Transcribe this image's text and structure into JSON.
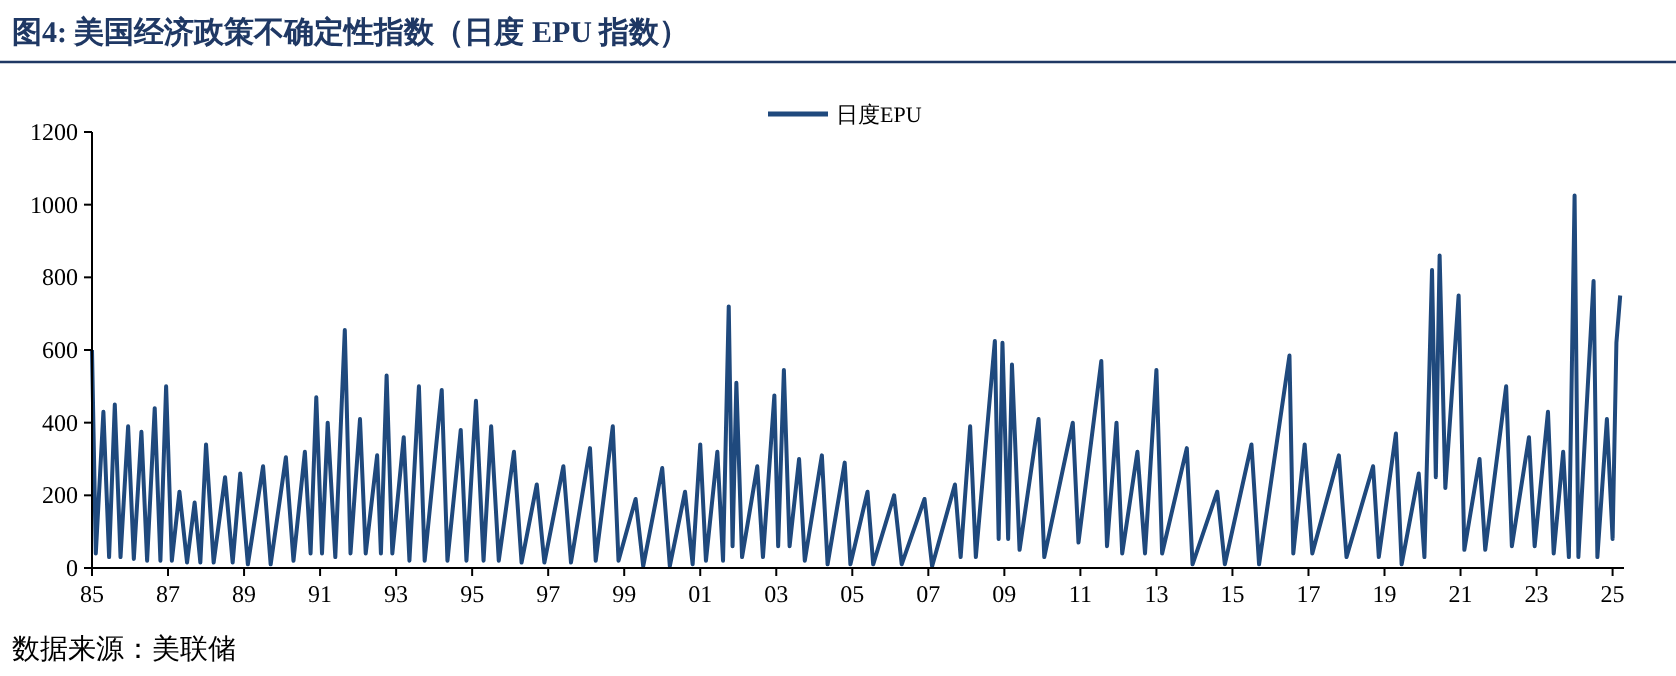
{
  "chart_data": {
    "type": "line",
    "title": "图4:  美国经济政策不确定性指数（日度 EPU 指数）",
    "annotations": [
      "数据来源：美联储"
    ],
    "series": [
      {
        "name": "日度EPU",
        "color": "#1f497d",
        "x": [
          1985.0,
          1985.1,
          1985.3,
          1985.45,
          1985.6,
          1985.75,
          1985.95,
          1986.1,
          1986.3,
          1986.45,
          1986.65,
          1986.8,
          1986.95,
          1987.1,
          1987.3,
          1987.5,
          1987.7,
          1987.85,
          1988.0,
          1988.2,
          1988.5,
          1988.7,
          1988.9,
          1989.1,
          1989.5,
          1989.7,
          1990.1,
          1990.3,
          1990.6,
          1990.75,
          1990.9,
          1991.05,
          1991.2,
          1991.4,
          1991.65,
          1991.8,
          1992.05,
          1992.2,
          1992.5,
          1992.6,
          1992.75,
          1992.9,
          1993.2,
          1993.35,
          1993.6,
          1993.75,
          1994.2,
          1994.35,
          1994.7,
          1994.85,
          1995.1,
          1995.3,
          1995.5,
          1995.7,
          1996.1,
          1996.3,
          1996.7,
          1996.9,
          1997.4,
          1997.6,
          1998.1,
          1998.25,
          1998.7,
          1998.85,
          1999.3,
          1999.5,
          2000.0,
          2000.2,
          2000.6,
          2000.8,
          2001.0,
          2001.15,
          2001.45,
          2001.6,
          2001.75,
          2001.85,
          2001.95,
          2002.1,
          2002.5,
          2002.65,
          2002.95,
          2003.05,
          2003.2,
          2003.35,
          2003.6,
          2003.75,
          2004.2,
          2004.35,
          2004.8,
          2004.95,
          2005.4,
          2005.55,
          2006.1,
          2006.3,
          2006.9,
          2007.1,
          2007.7,
          2007.85,
          2008.1,
          2008.25,
          2008.75,
          2008.85,
          2008.95,
          2009.1,
          2009.2,
          2009.4,
          2009.9,
          2010.05,
          2010.8,
          2010.95,
          2011.55,
          2011.7,
          2011.95,
          2012.1,
          2012.5,
          2012.7,
          2013.0,
          2013.15,
          2013.8,
          2013.95,
          2014.6,
          2014.8,
          2015.5,
          2015.7,
          2016.5,
          2016.6,
          2016.9,
          2017.1,
          2017.8,
          2018.0,
          2018.7,
          2018.85,
          2019.3,
          2019.45,
          2019.9,
          2020.05,
          2020.25,
          2020.35,
          2020.45,
          2020.6,
          2020.95,
          2021.1,
          2021.5,
          2021.65,
          2022.2,
          2022.35,
          2022.8,
          2022.95,
          2023.3,
          2023.45,
          2023.7,
          2023.85,
          2024.0,
          2024.1,
          2024.5,
          2024.6,
          2024.85,
          2025.0,
          2025.1,
          2025.2
        ],
        "values": [
          600,
          40,
          430,
          30,
          450,
          30,
          390,
          25,
          375,
          20,
          440,
          20,
          500,
          20,
          210,
          15,
          180,
          15,
          340,
          15,
          250,
          15,
          260,
          10,
          280,
          10,
          305,
          20,
          320,
          40,
          470,
          40,
          400,
          30,
          655,
          40,
          410,
          40,
          310,
          40,
          530,
          40,
          360,
          20,
          500,
          20,
          490,
          20,
          380,
          20,
          460,
          20,
          390,
          20,
          320,
          15,
          230,
          15,
          280,
          15,
          330,
          20,
          390,
          20,
          190,
          5,
          275,
          5,
          210,
          10,
          340,
          20,
          320,
          20,
          720,
          60,
          510,
          30,
          280,
          30,
          475,
          60,
          545,
          60,
          300,
          20,
          310,
          10,
          290,
          10,
          210,
          10,
          200,
          10,
          190,
          5,
          230,
          30,
          390,
          30,
          625,
          80,
          620,
          80,
          560,
          50,
          410,
          30,
          400,
          70,
          570,
          60,
          400,
          40,
          320,
          40,
          545,
          40,
          330,
          10,
          210,
          10,
          340,
          10,
          585,
          40,
          340,
          40,
          310,
          30,
          280,
          30,
          370,
          10,
          260,
          30,
          820,
          250,
          860,
          220,
          750,
          50,
          300,
          50,
          500,
          60,
          360,
          60,
          430,
          40,
          320,
          30,
          1025,
          30,
          790,
          30,
          410,
          80,
          620,
          750
        ]
      }
    ],
    "xlim": [
      1985,
      2025.3
    ],
    "xticks": [
      {
        "value": 1985,
        "label": "85"
      },
      {
        "value": 1987,
        "label": "87"
      },
      {
        "value": 1989,
        "label": "89"
      },
      {
        "value": 1991,
        "label": "91"
      },
      {
        "value": 1993,
        "label": "93"
      },
      {
        "value": 1995,
        "label": "95"
      },
      {
        "value": 1997,
        "label": "97"
      },
      {
        "value": 1999,
        "label": "99"
      },
      {
        "value": 2001,
        "label": "01"
      },
      {
        "value": 2003,
        "label": "03"
      },
      {
        "value": 2005,
        "label": "05"
      },
      {
        "value": 2007,
        "label": "07"
      },
      {
        "value": 2009,
        "label": "09"
      },
      {
        "value": 2011,
        "label": "11"
      },
      {
        "value": 2013,
        "label": "13"
      },
      {
        "value": 2015,
        "label": "15"
      },
      {
        "value": 2017,
        "label": "17"
      },
      {
        "value": 2019,
        "label": "19"
      },
      {
        "value": 2021,
        "label": "21"
      },
      {
        "value": 2023,
        "label": "23"
      },
      {
        "value": 2025,
        "label": "25"
      }
    ],
    "ylim": [
      0,
      1200
    ],
    "yticks": [
      0,
      200,
      400,
      600,
      800,
      1000,
      1200
    ],
    "legend": "top",
    "grid": false
  }
}
